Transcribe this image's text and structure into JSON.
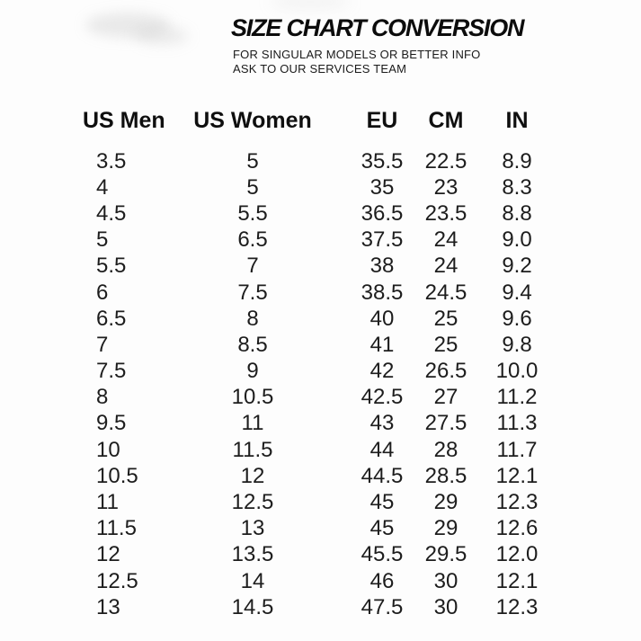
{
  "title": "SIZE CHART CONVERSION",
  "subtitle": {
    "line1": "FOR SINGULAR MODELS OR BETTER INFO",
    "line2": "ASK TO OUR SERVICES TEAM"
  },
  "colors": {
    "background": "#fdfdfd",
    "title_text": "#0c0c0c",
    "table_text": "#1d1d1d"
  },
  "chart_data": {
    "type": "table",
    "title": "SIZE CHART CONVERSION",
    "columns": [
      "US Men",
      "US Women",
      "EU",
      "CM",
      "IN"
    ],
    "rows": [
      [
        "3.5",
        "5",
        "35.5",
        "22.5",
        "8.9"
      ],
      [
        "4",
        "5",
        "35",
        "23",
        "8.3"
      ],
      [
        "4.5",
        "5.5",
        "36.5",
        "23.5",
        "8.8"
      ],
      [
        "5",
        "6.5",
        "37.5",
        "24",
        "9.0"
      ],
      [
        "5.5",
        "7",
        "38",
        "24",
        "9.2"
      ],
      [
        "6",
        "7.5",
        "38.5",
        "24.5",
        "9.4"
      ],
      [
        "6.5",
        "8",
        "40",
        "25",
        "9.6"
      ],
      [
        "7",
        "8.5",
        "41",
        "25",
        "9.8"
      ],
      [
        "7.5",
        "9",
        "42",
        "26.5",
        "10.0"
      ],
      [
        "8",
        "10.5",
        "42.5",
        "27",
        "11.2"
      ],
      [
        "9.5",
        "11",
        "43",
        "27.5",
        "11.3"
      ],
      [
        "10",
        "11.5",
        "44",
        "28",
        "11.7"
      ],
      [
        "10.5",
        "12",
        "44.5",
        "28.5",
        "12.1"
      ],
      [
        "11",
        "12.5",
        "45",
        "29",
        "12.3"
      ],
      [
        "11.5",
        "13",
        "45",
        "29",
        "12.6"
      ],
      [
        "12",
        "13.5",
        "45.5",
        "29.5",
        "12.0"
      ],
      [
        "12.5",
        "14",
        "46",
        "30",
        "12.1"
      ],
      [
        "13",
        "14.5",
        "47.5",
        "30",
        "12.3"
      ]
    ]
  }
}
